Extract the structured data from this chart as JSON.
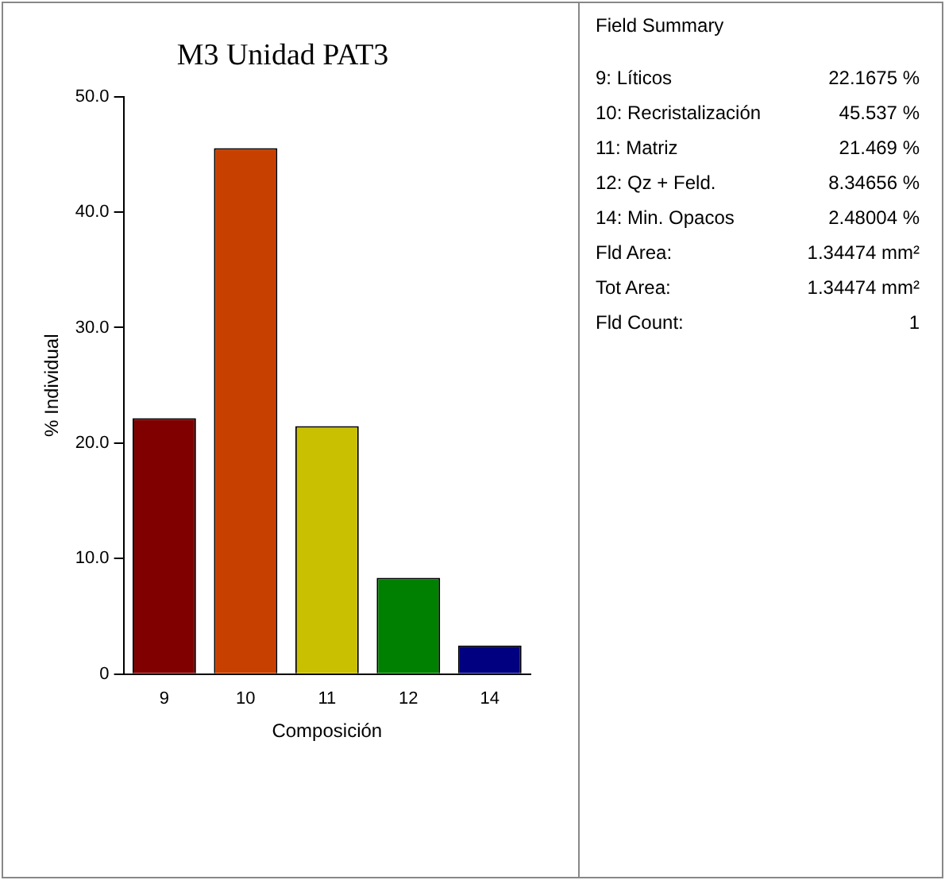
{
  "chart_data": [
    {
      "type": "bar",
      "title": "M3 Unidad PAT3",
      "xlabel": "Composición",
      "ylabel": "% Individual",
      "categories": [
        "9",
        "10",
        "11",
        "12",
        "14"
      ],
      "values": [
        22.1675,
        45.537,
        21.469,
        8.34656,
        2.48004
      ],
      "colors": [
        "#800000",
        "#c84000",
        "#c8c000",
        "#008000",
        "#000080"
      ],
      "ylim": [
        0,
        50
      ],
      "yticks": [
        0,
        {
          "value": 10,
          "label": "10.0"
        },
        {
          "value": 20,
          "label": "20.0"
        },
        {
          "value": 30,
          "label": "30.0"
        },
        {
          "value": 40,
          "label": "40.0"
        },
        {
          "value": 50,
          "label": "50.0"
        }
      ],
      "grid": false,
      "legend": false
    },
    {
      "type": "other",
      "title": "Field Summary",
      "annotations": [
        "9: Líticos",
        "22.1675 %",
        "10: Recristalización",
        "45.537 %",
        "11: Matriz",
        "21.469 %",
        "12: Qz + Feld.",
        "8.34656 %",
        "14: Min. Opacos",
        "2.48004 %",
        "Fld Area:",
        "1.34474 mm²",
        "Tot Area:",
        "1.34474 mm²",
        "Fld Count:",
        "1"
      ]
    }
  ]
}
